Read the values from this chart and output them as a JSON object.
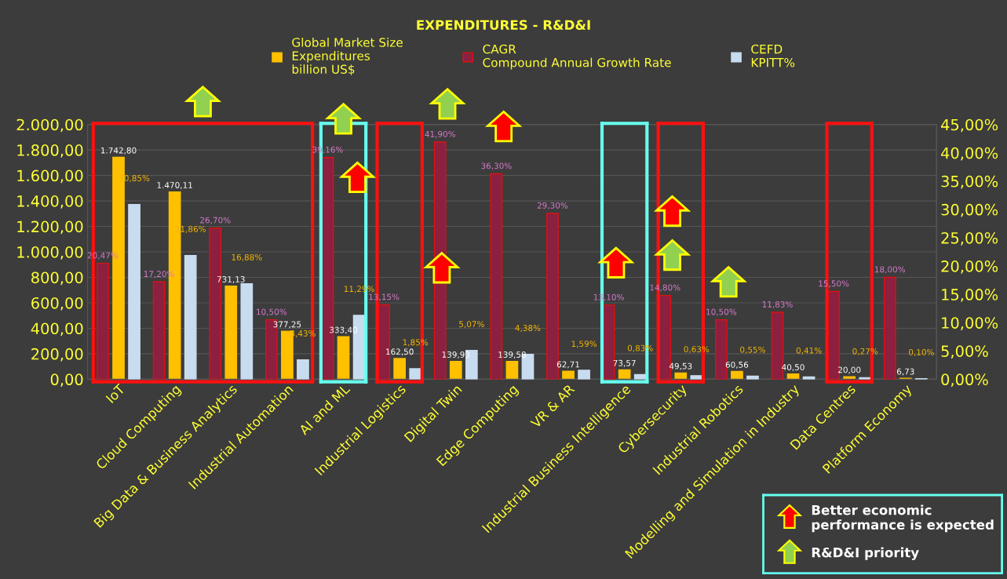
{
  "chart_data": {
    "type": "bar",
    "title": "EXPENDITURES - R&D&I",
    "categories": [
      "IoT",
      "Cloud Computing",
      "Big Data & Business Analytics",
      "Industrial Automation",
      "AI and ML",
      "Industrial Logistics",
      "Digital Twin",
      "Edge Computing",
      "VR & AR",
      "Industrial Business Intelligence",
      "Cybersecurity",
      "Industrial Robotics",
      "Modelling and Simulation in Industry",
      "Data Centres",
      "Platform Economy"
    ],
    "series": [
      {
        "name": "Global Market Size\nExpenditures\nbillion US$",
        "color": "#ffc000",
        "values": [
          1742.8,
          1470.11,
          731.13,
          377.25,
          333.4,
          162.5,
          139.93,
          139.58,
          62.71,
          73.57,
          49.53,
          60.56,
          40.5,
          20.0,
          6.73
        ],
        "value_labels": [
          "1.742,80",
          "1.470,11",
          "731,13",
          "377,25",
          "333,40",
          "162,50",
          "139,93",
          "139,58",
          "62,71",
          "73,57",
          "49,53",
          "60,56",
          "40,50",
          "20,00",
          "6,73"
        ]
      },
      {
        "name": "CAGR\nCompound Annual Growth Rate",
        "color": "#8b2040",
        "axis": "y2",
        "values": [
          20.47,
          17.2,
          26.7,
          10.5,
          39.16,
          13.15,
          41.9,
          36.3,
          29.3,
          13.1,
          14.8,
          10.5,
          11.83,
          15.5,
          18.0
        ],
        "value_labels": [
          "20,47%",
          "17,20%",
          "26,70%",
          "10,50%",
          "39,16%",
          "13,15%",
          "41,90%",
          "36,30%",
          "29,30%",
          "13,10%",
          "14,80%",
          "10,50%",
          "11,83%",
          "15,50%",
          "18,00%"
        ]
      },
      {
        "name": "CEFD\nKPITT%",
        "color": "#c8dcf0",
        "axis": "y2",
        "values": [
          30.85,
          21.86,
          16.88,
          3.43,
          11.29,
          1.85,
          5.07,
          4.38,
          1.59,
          0.83,
          0.63,
          0.55,
          0.41,
          0.27,
          0.1
        ],
        "value_labels": [
          "30,85%",
          "21,86%",
          "16,88%",
          "3,43%",
          "11,29%",
          "1,85%",
          "5,07%",
          "4,38%",
          "1,59%",
          "0,83%",
          "0,63%",
          "0,55%",
          "0,41%",
          "0,27%",
          "0,10%"
        ]
      }
    ],
    "ylim": [
      0,
      2000
    ],
    "yticks": [
      {
        "value": 0,
        "label": "0,00"
      },
      {
        "value": 200,
        "label": "200,00"
      },
      {
        "value": 400,
        "label": "400,00"
      },
      {
        "value": 600,
        "label": "600,00"
      },
      {
        "value": 800,
        "label": "800,00"
      },
      {
        "value": 1000,
        "label": "1.000,00"
      },
      {
        "value": 1200,
        "label": "1.200,00"
      },
      {
        "value": 1400,
        "label": "1.400,00"
      },
      {
        "value": 1600,
        "label": "1.600,00"
      },
      {
        "value": 1800,
        "label": "1.800,00"
      },
      {
        "value": 2000,
        "label": "2.000,00"
      }
    ],
    "y2lim": [
      0,
      45
    ],
    "y2ticks": [
      {
        "value": 0,
        "label": "0,00%"
      },
      {
        "value": 5,
        "label": "5,00%"
      },
      {
        "value": 10,
        "label": "10,00%"
      },
      {
        "value": 15,
        "label": "15,00%"
      },
      {
        "value": 20,
        "label": "20,00%"
      },
      {
        "value": 25,
        "label": "25,00%"
      },
      {
        "value": 30,
        "label": "30,00%"
      },
      {
        "value": 35,
        "label": "35,00%"
      },
      {
        "value": 40,
        "label": "40,00%"
      },
      {
        "value": 45,
        "label": "45,00%"
      }
    ],
    "annotations": [
      "Better economic performance is expected",
      "R&D&I priority"
    ],
    "grid": "y",
    "legend": "top"
  }
}
